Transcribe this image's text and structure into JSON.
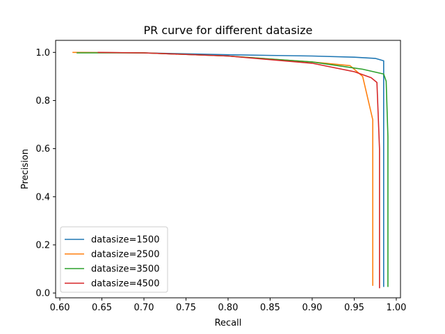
{
  "chart_data": {
    "type": "line",
    "title": "PR curve for different datasize",
    "xlabel": "Recall",
    "ylabel": "Precision",
    "xlim": [
      0.595,
      1.005
    ],
    "ylim": [
      -0.02,
      1.05
    ],
    "xticks": [
      0.6,
      0.65,
      0.7,
      0.75,
      0.8,
      0.85,
      0.9,
      0.95,
      1.0
    ],
    "xtick_labels": [
      "0.60",
      "0.65",
      "0.70",
      "0.75",
      "0.80",
      "0.85",
      "0.90",
      "0.95",
      "1.00"
    ],
    "yticks": [
      0.0,
      0.2,
      0.4,
      0.6,
      0.8,
      1.0
    ],
    "ytick_labels": [
      "0.0",
      "0.2",
      "0.4",
      "0.6",
      "0.8",
      "1.0"
    ],
    "grid": false,
    "legend_position": "lower-left",
    "series": [
      {
        "name": "datasize=1500",
        "color": "#1f77b4",
        "x": [
          0.62,
          0.7,
          0.8,
          0.9,
          0.95,
          0.975,
          0.985,
          0.985,
          0.985
        ],
        "y": [
          1.0,
          0.998,
          0.99,
          0.985,
          0.98,
          0.975,
          0.965,
          0.6,
          0.025
        ]
      },
      {
        "name": "datasize=2500",
        "color": "#ff7f0e",
        "x": [
          0.615,
          0.7,
          0.8,
          0.9,
          0.945,
          0.96,
          0.972,
          0.972
        ],
        "y": [
          1.0,
          0.998,
          0.985,
          0.96,
          0.945,
          0.9,
          0.72,
          0.03
        ]
      },
      {
        "name": "datasize=3500",
        "color": "#2ca02c",
        "x": [
          0.62,
          0.7,
          0.8,
          0.9,
          0.96,
          0.985,
          0.988,
          0.99,
          0.99
        ],
        "y": [
          0.998,
          0.998,
          0.985,
          0.96,
          0.93,
          0.91,
          0.88,
          0.65,
          0.025
        ]
      },
      {
        "name": "datasize=4500",
        "color": "#d62728",
        "x": [
          0.645,
          0.7,
          0.8,
          0.9,
          0.95,
          0.97,
          0.977,
          0.98,
          0.98
        ],
        "y": [
          1.0,
          0.998,
          0.985,
          0.955,
          0.92,
          0.895,
          0.875,
          0.6,
          0.02
        ]
      }
    ]
  }
}
